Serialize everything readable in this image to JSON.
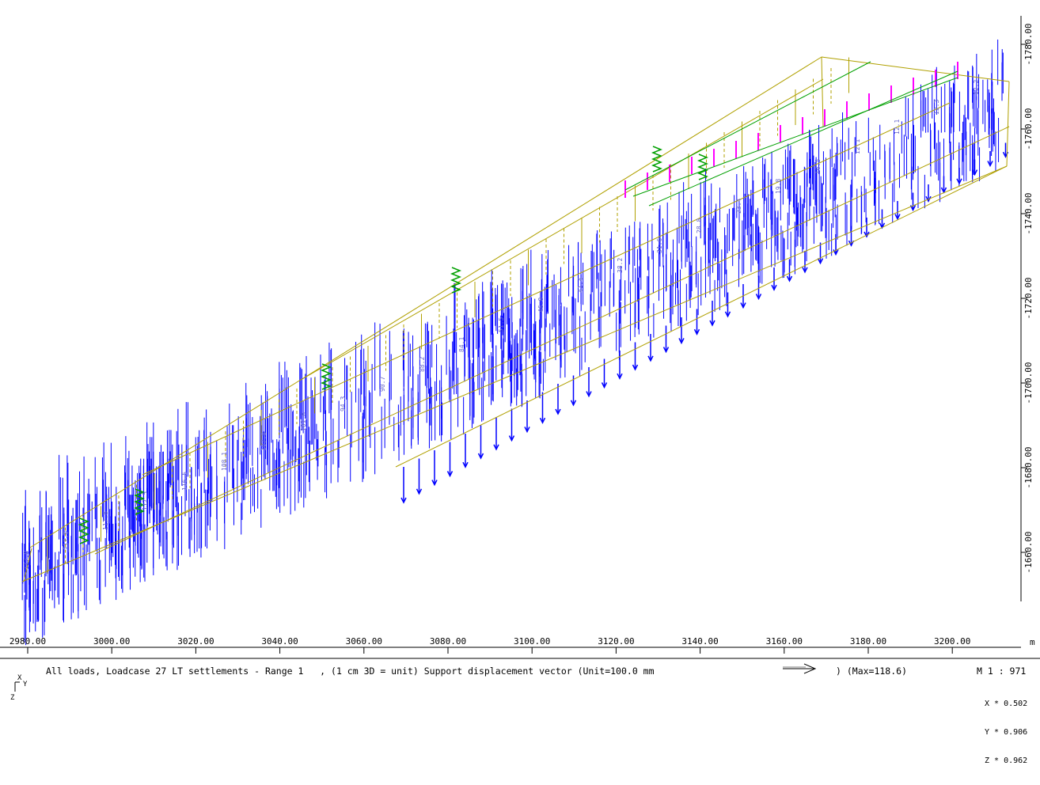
{
  "view": {
    "x_axis": {
      "unit": "m",
      "ticks": [
        "2980.00",
        "3000.00",
        "3020.00",
        "3040.00",
        "3060.00",
        "3080.00",
        "3100.00",
        "3120.00",
        "3140.00",
        "3160.00",
        "3180.00",
        "3200.00"
      ]
    },
    "z_axis": {
      "ticks": [
        "-1780.00",
        "-1760.00",
        "-1740.00",
        "-1720.00",
        "-1700.00",
        "-1680.00",
        "-1660.00"
      ]
    }
  },
  "caption": {
    "text": "All loads, Loadcase 27 LT settlements - Range 1   , (1 cm 3D = unit) Support displacement vector (Unit=100.0 mm",
    "max_text": ") (Max=118.6)",
    "scale": "M 1 : 971",
    "factors": [
      "X * 0.502",
      "Y * 0.906",
      "Z * 0.962"
    ],
    "triad": {
      "x": "X",
      "y": "Y",
      "z": "Z"
    }
  },
  "colors": {
    "structure": "#b0a000",
    "vectors": "#0000ff",
    "springs": "#00a000",
    "highlight": "#ff00ff",
    "labels": "#6666cc"
  },
  "value_labels": [
    "117.0",
    "117.0",
    "117.8",
    "117.5",
    "116.5",
    "108.1",
    "107.8",
    "101.6",
    "94.3",
    "90.7",
    "88.2",
    "84.1",
    "51.5",
    "46.0",
    "41.4",
    "38.2",
    "31.6",
    "28.8",
    "23.4",
    "19.8",
    "16.5",
    "12.1",
    "12.1",
    "12.3",
    "12.2"
  ]
}
